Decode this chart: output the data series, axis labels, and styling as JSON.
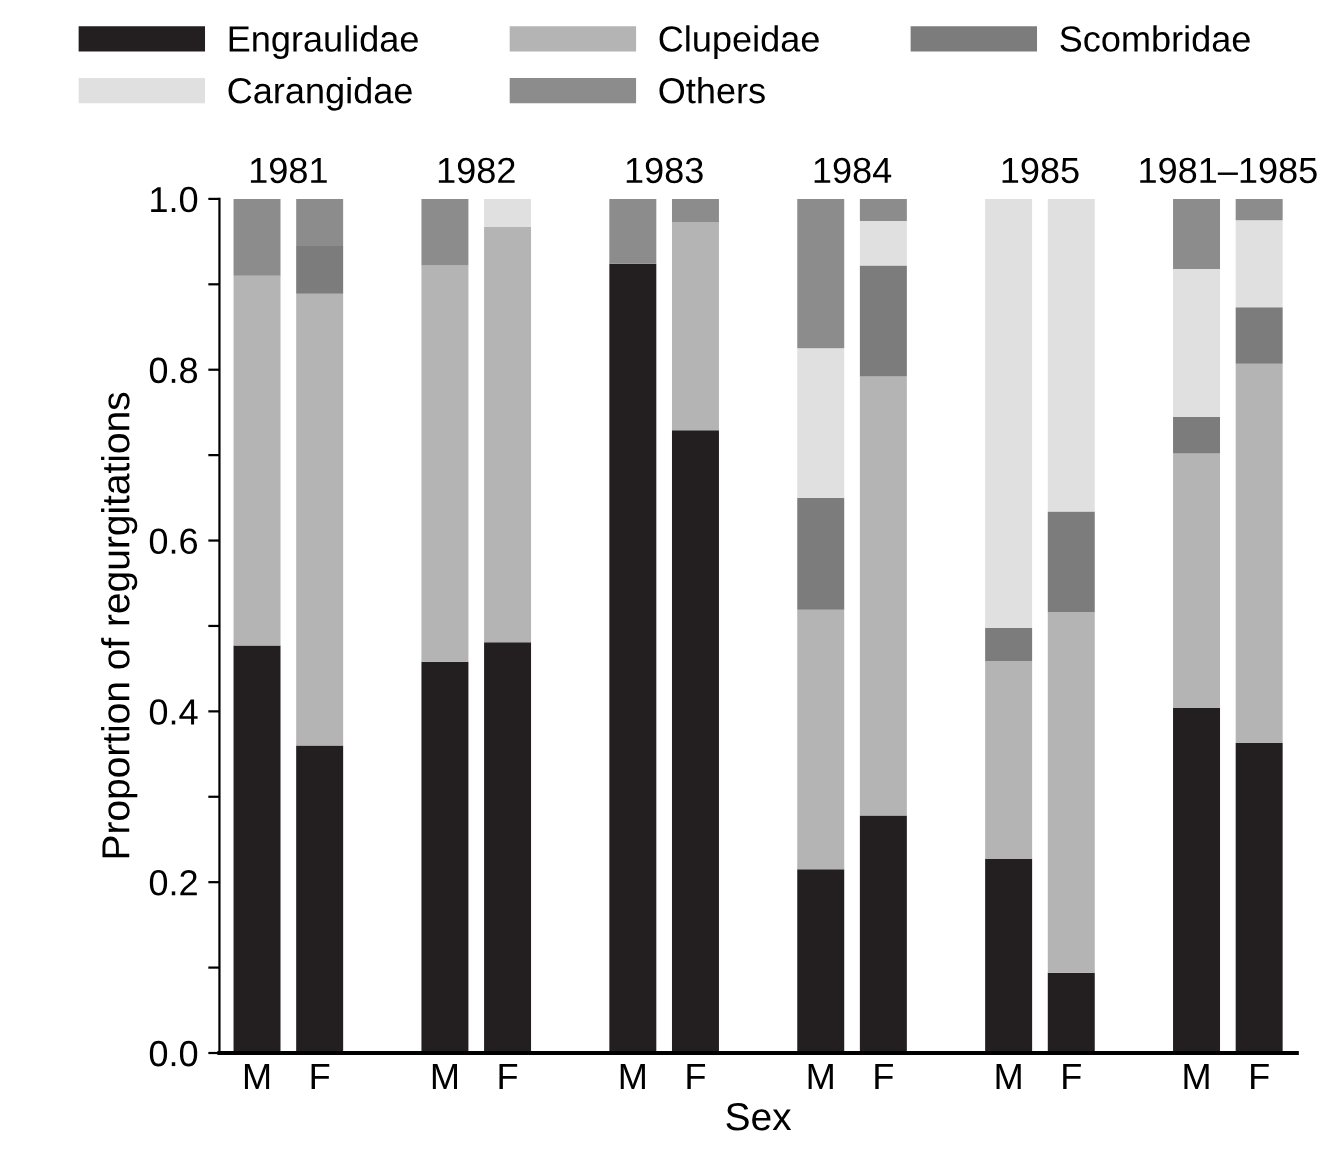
{
  "chart_data": {
    "type": "bar",
    "stacked": true,
    "categories": [
      "M",
      "F",
      null,
      "M",
      "F",
      null,
      "M",
      "F",
      null,
      "M",
      "F",
      null,
      "M",
      "F",
      null,
      "M",
      "F"
    ],
    "series": [
      {
        "name": "Engraulidae",
        "color": "#231f20",
        "values": [
          0.477,
          0.36,
          null,
          0.458,
          0.481,
          null,
          0.924,
          0.729,
          null,
          0.215,
          0.278,
          null,
          0.227,
          0.094,
          null,
          0.404,
          0.363
        ]
      },
      {
        "name": "Clupeidae",
        "color": "#b4b4b4",
        "values": [
          0.433,
          0.529,
          null,
          0.464,
          0.486,
          null,
          0,
          0.244,
          null,
          0.304,
          0.514,
          null,
          0.232,
          0.422,
          null,
          0.298,
          0.444
        ]
      },
      {
        "name": "Scombridae",
        "color": "#7c7c7c",
        "values": [
          0,
          0.056,
          null,
          0,
          0,
          null,
          0,
          0,
          null,
          0.131,
          0.13,
          null,
          0.039,
          0.118,
          null,
          0.043,
          0.066
        ]
      },
      {
        "name": "Carangidae",
        "color": "#e0e0e0",
        "values": [
          0,
          0,
          null,
          0,
          0.033,
          null,
          0,
          0,
          null,
          0.175,
          0.052,
          null,
          0.502,
          0.366,
          null,
          0.173,
          0.102
        ]
      },
      {
        "name": "Others",
        "color": "#8c8c8c",
        "values": [
          0.09,
          0.055,
          null,
          0.078,
          0,
          null,
          0.076,
          0.027,
          null,
          0.175,
          0.026,
          null,
          0,
          0,
          null,
          0.082,
          0.025
        ]
      }
    ],
    "ylim": [
      0,
      1.0
    ],
    "yticks": [
      {
        "value": 0,
        "label": "0.0"
      },
      {
        "value": 0.1,
        "label": null
      },
      0.2,
      {
        "value": 0.3,
        "label": null
      },
      0.4,
      {
        "value": 0.5,
        "label": null
      },
      0.6,
      {
        "value": 0.7,
        "label": null
      },
      0.8,
      {
        "value": 0.9,
        "label": null
      },
      {
        "value": 1.0,
        "label": "1.0"
      }
    ],
    "xlabel": "Sex",
    "ylabel": "Proportion of regurgitations",
    "annotations": [
      "1981",
      "1982",
      "1983",
      "1984",
      "1985",
      "1981–1985"
    ],
    "legend": "top",
    "grid": false
  }
}
